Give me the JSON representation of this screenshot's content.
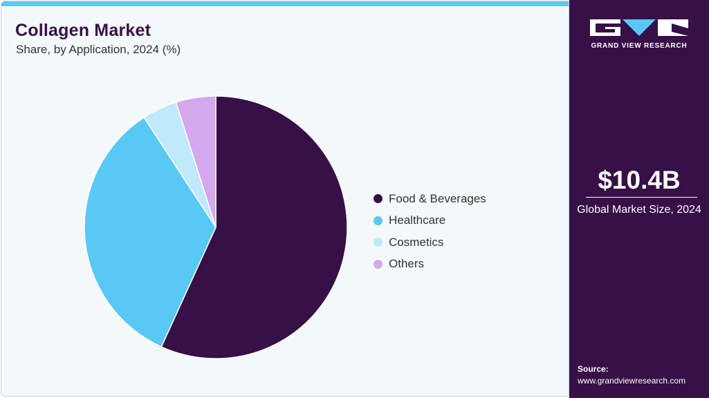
{
  "header": {
    "title": "Collagen Market",
    "subtitle": "Share, by Application, 2024 (%)"
  },
  "chart_data": {
    "type": "pie",
    "title": "Collagen Market",
    "subtitle": "Share, by Application, 2024 (%)",
    "categories": [
      "Food & Beverages",
      "Healthcare",
      "Cosmetics",
      "Others"
    ],
    "values": [
      56.8,
      34.0,
      4.3,
      4.9
    ],
    "colors": [
      "#371047",
      "#5ac8f5",
      "#c0e9fb",
      "#d3a8ec"
    ],
    "start_angle": "12 o'clock, clockwise",
    "legend_position": "right"
  },
  "sidebar": {
    "brand": "GRAND VIEW RESEARCH",
    "market_size": "$10.4B",
    "market_label": "Global Market Size, 2024",
    "source_label": "Source:",
    "source_url": "www.grandviewresearch.com"
  }
}
